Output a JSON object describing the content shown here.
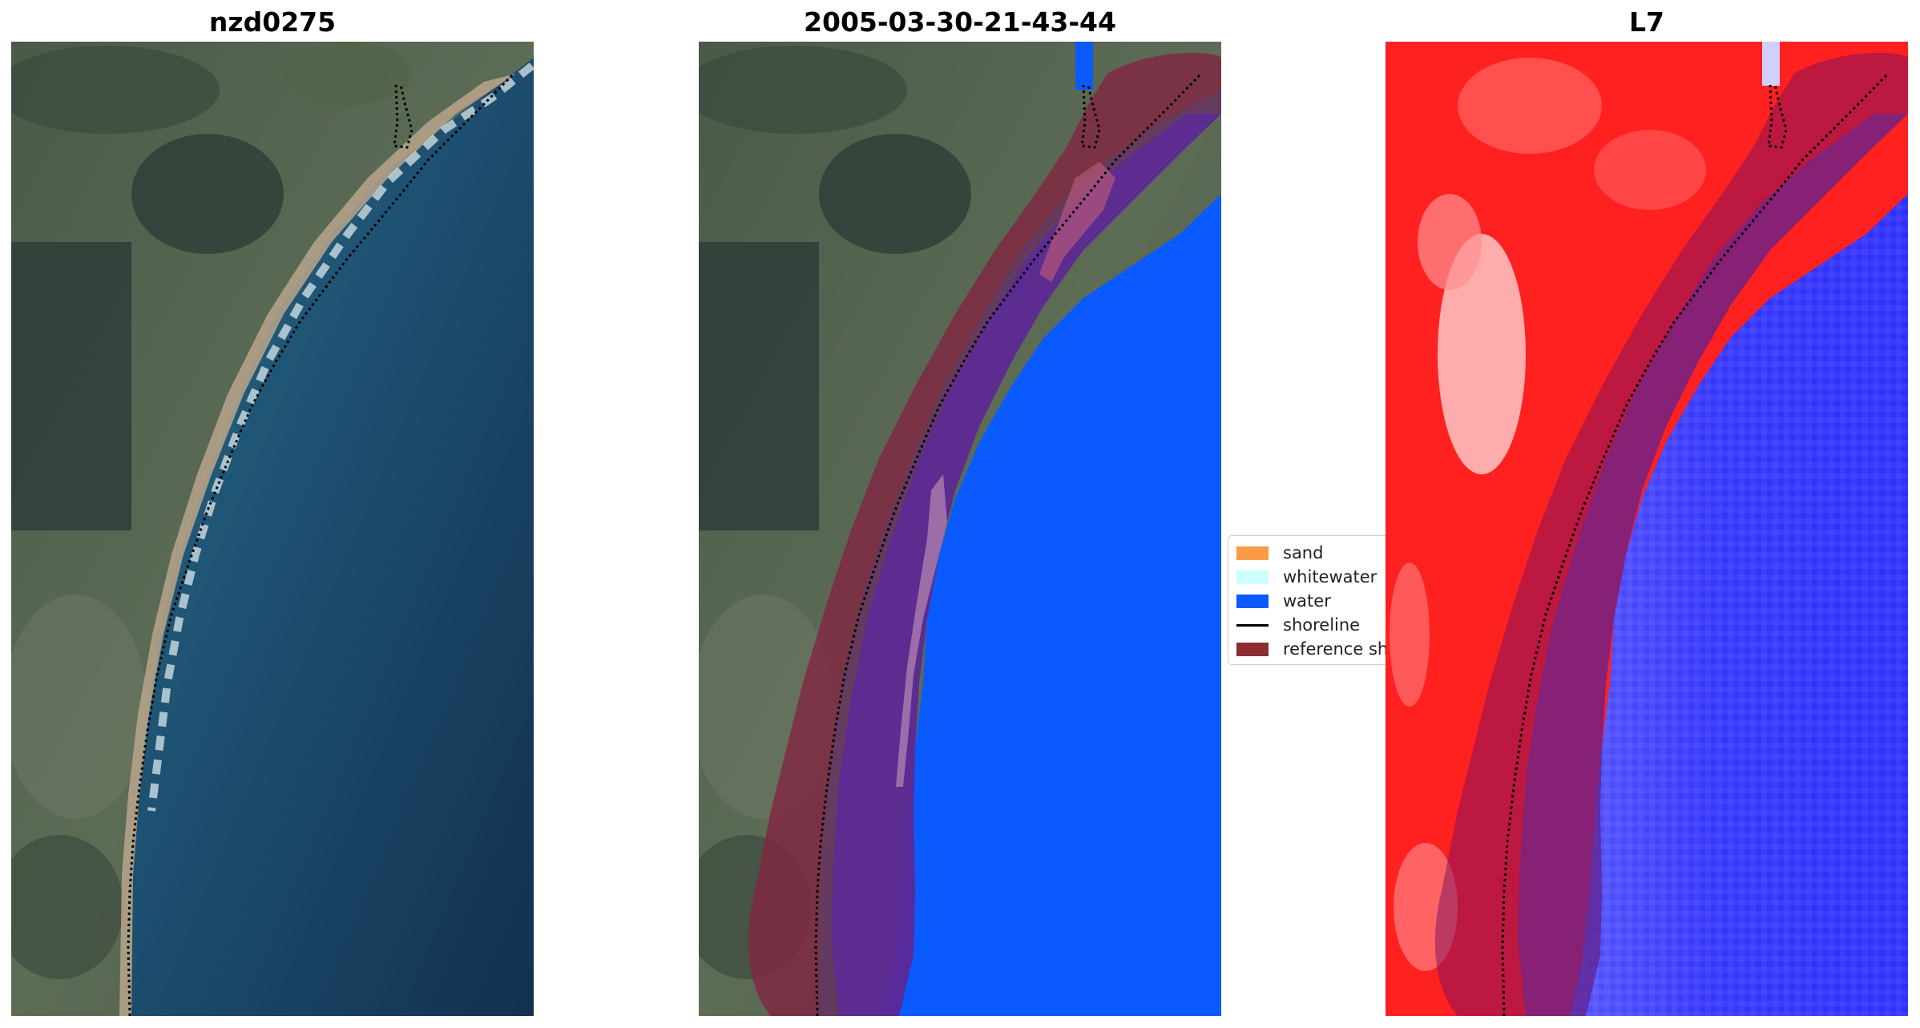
{
  "panels": [
    {
      "title": "nzd0275"
    },
    {
      "title": "2005-03-30-21-43-44"
    },
    {
      "title": "L7"
    }
  ],
  "legend": {
    "items": [
      {
        "label": "sand",
        "color": "#FA9B46",
        "kind": "patch"
      },
      {
        "label": "whitewater",
        "color": "#CCFFFF",
        "kind": "patch"
      },
      {
        "label": "water",
        "color": "#0A5AFF",
        "kind": "patch"
      },
      {
        "label": "shoreline",
        "color": "#000000",
        "kind": "line"
      },
      {
        "label": "reference sh",
        "color": "#8C2D32",
        "kind": "patch"
      }
    ]
  },
  "colors": {
    "reference_buffer": "#8C2D32",
    "water_class": "#0A5AFF",
    "sand_class": "#FA9B46",
    "shoreline": "#000000",
    "land_index": "#FF2020",
    "water_index": "#3030FF"
  }
}
